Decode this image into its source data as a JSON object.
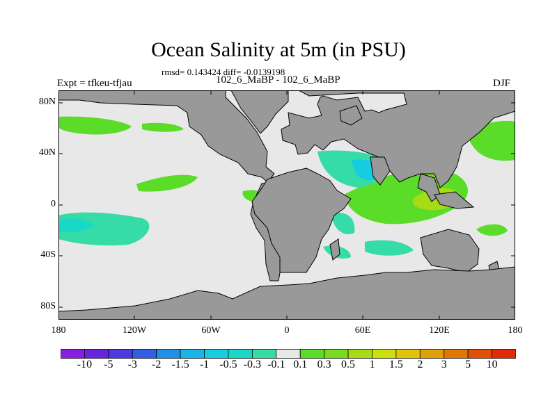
{
  "title": "Ocean Salinity at 5m (in PSU)",
  "stats": "rmsd= 0.143424 diff= -0.0139198",
  "experiments": "102_6_MaBP - 102_6_MaBP",
  "expt_label": "Expt = tfkeu-tfjau",
  "season": "DJF",
  "map": {
    "land_color": "#999999",
    "ocean_neutral_color": "#e8e8e8",
    "lat_labels": [
      "80N",
      "40N",
      "0",
      "40S",
      "80S"
    ],
    "lat_values": [
      80,
      40,
      0,
      -40,
      -80
    ],
    "lon_labels": [
      "180",
      "120W",
      "60W",
      "0",
      "60E",
      "120E",
      "180"
    ],
    "lon_values": [
      -180,
      -120,
      -60,
      0,
      60,
      120,
      180
    ]
  },
  "colorbar": {
    "levels": [
      "-10",
      "-5",
      "-3",
      "-2",
      "-1.5",
      "-1",
      "-0.5",
      "-0.3",
      "-0.1",
      "0.1",
      "0.3",
      "0.5",
      "1",
      "1.5",
      "2",
      "3",
      "5",
      "10"
    ],
    "colors": [
      "#8a1ee0",
      "#6a24e0",
      "#4a3ae0",
      "#2f60e4",
      "#2090e6",
      "#1ab4e6",
      "#16cce0",
      "#1ad8c8",
      "#36dca8",
      "#e8e8e8",
      "#5adc28",
      "#78dc1c",
      "#a6dc14",
      "#cce00e",
      "#e0c408",
      "#e0a008",
      "#e07808",
      "#e05008",
      "#e02a08"
    ]
  }
}
